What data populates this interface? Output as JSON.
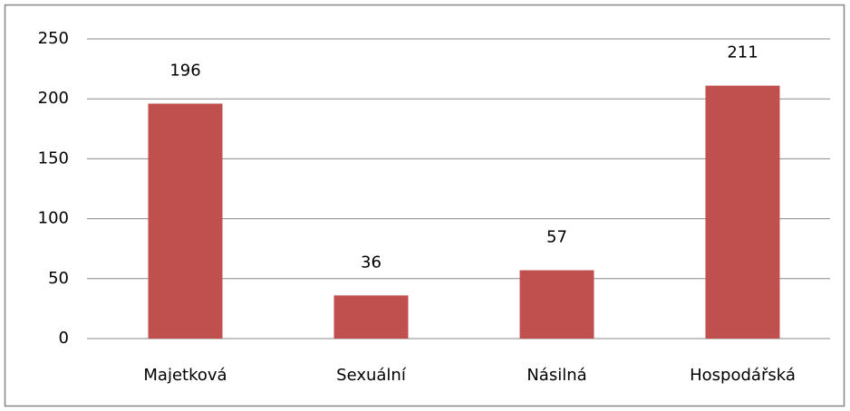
{
  "chart_data": {
    "type": "bar",
    "categories": [
      "Majetková",
      "Sexuální",
      "Násilná",
      "Hospodářská"
    ],
    "values": [
      196,
      36,
      57,
      211
    ],
    "color": "#c0504d",
    "ylim": [
      0,
      250
    ],
    "yticks": [
      0,
      50,
      100,
      150,
      200,
      250
    ],
    "grid": true,
    "data_labels": true
  }
}
